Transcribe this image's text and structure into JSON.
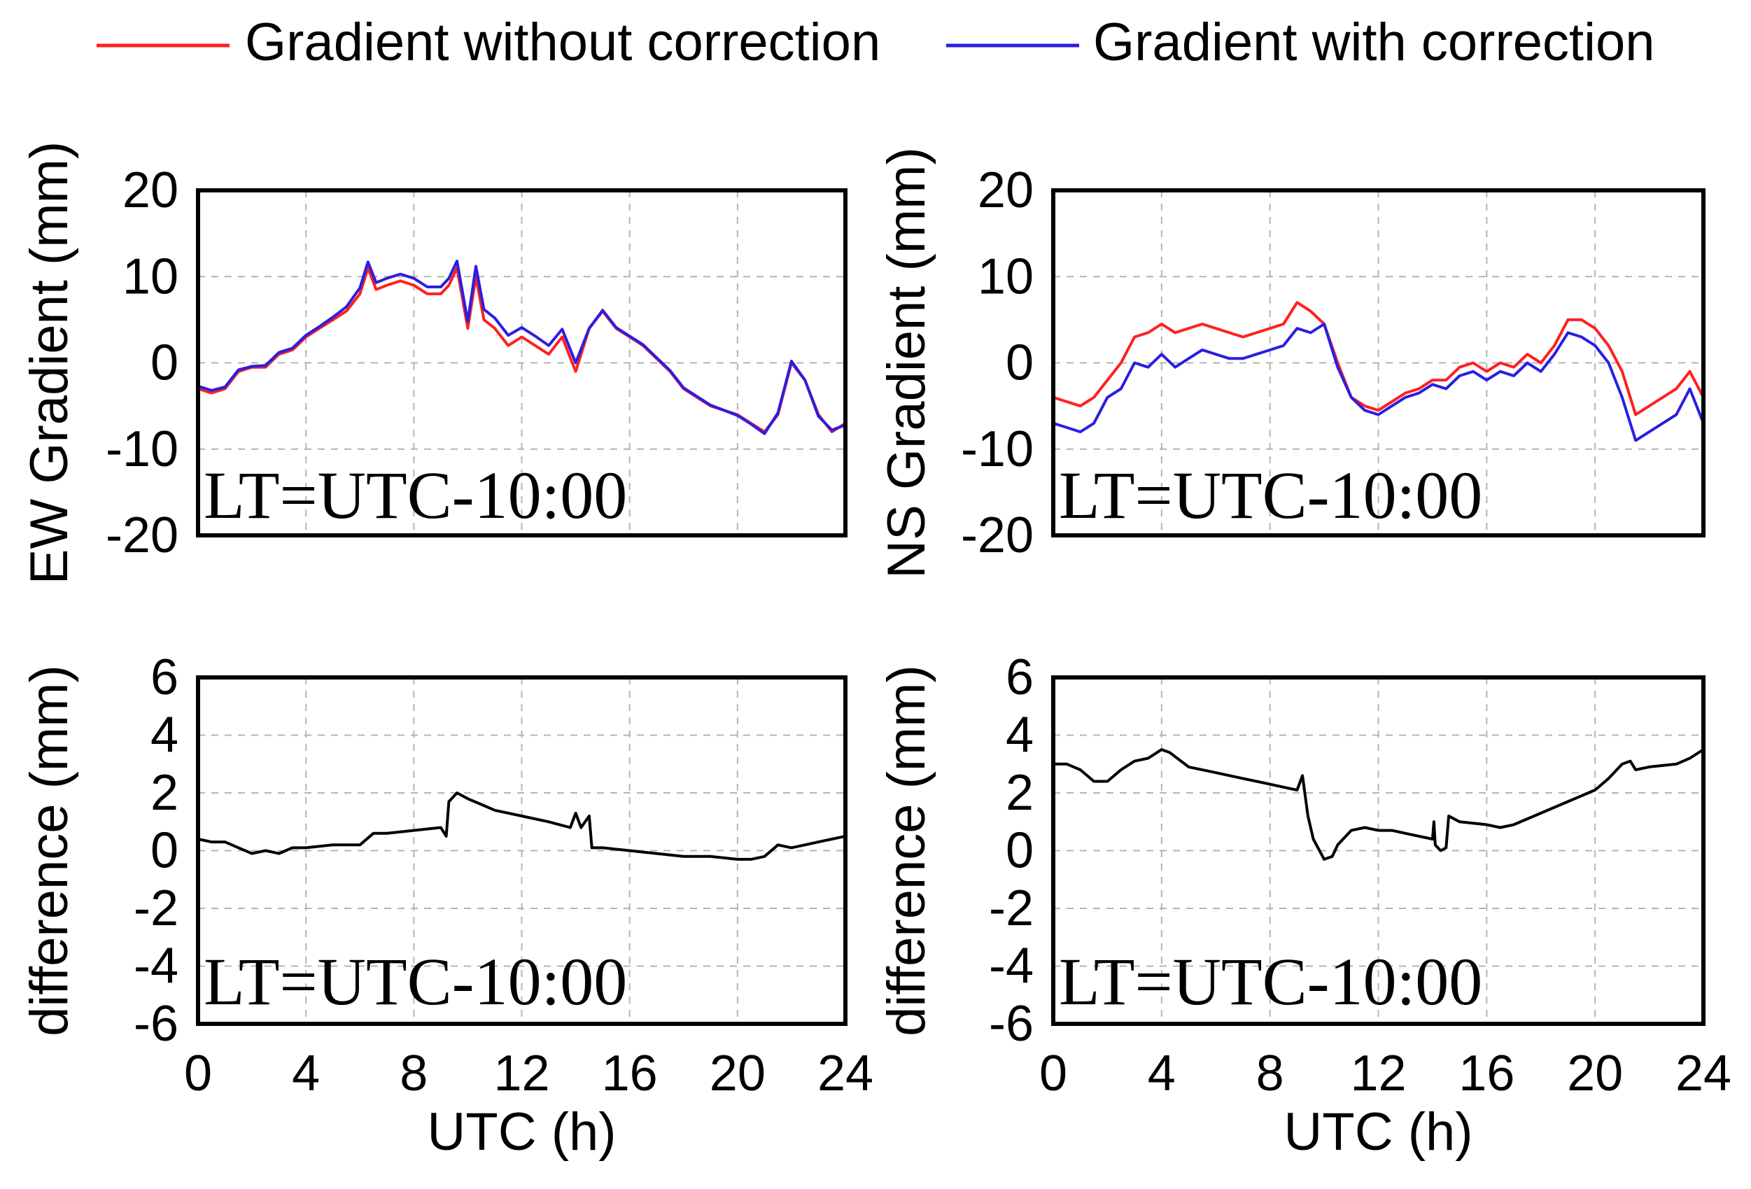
{
  "legend": {
    "items": [
      {
        "label": "Gradient without correction",
        "color": "#ff2020"
      },
      {
        "label": "Gradient with correction",
        "color": "#2b1fe0"
      }
    ]
  },
  "colors": {
    "without": "#ff2020",
    "with": "#2b1fe0",
    "difference": "#000000",
    "grid": "#b4b4b4"
  },
  "chart_data": [
    {
      "type": "line",
      "ylabel": "EW Gradient (mm)",
      "annotation": "LT=UTC-10:00",
      "xlim": [
        0,
        24
      ],
      "ylim": [
        -20,
        20
      ],
      "xticks": [
        0,
        4,
        8,
        12,
        16,
        20,
        24
      ],
      "yticks": [
        20,
        10,
        0,
        -10,
        -20
      ],
      "grid": true,
      "series": [
        {
          "name": "Gradient without correction",
          "color": "#ff2020",
          "x": [
            0,
            0.5,
            1,
            1.5,
            2,
            2.5,
            3,
            3.5,
            4,
            4.5,
            5,
            5.5,
            6,
            6.3,
            6.6,
            7,
            7.5,
            8,
            8.5,
            9,
            9.3,
            9.6,
            10,
            10.3,
            10.6,
            11,
            11.5,
            12,
            12.5,
            13,
            13.5,
            14,
            14.5,
            15,
            15.5,
            16,
            16.5,
            17,
            17.5,
            18,
            18.5,
            19,
            19.5,
            20,
            20.5,
            21,
            21.5,
            22,
            22.5,
            23,
            23.5,
            24
          ],
          "y": [
            -3,
            -3.5,
            -3,
            -1,
            -0.5,
            -0.5,
            1,
            1.5,
            3,
            4,
            5,
            6,
            8,
            11,
            8.5,
            9,
            9.5,
            9,
            8,
            8,
            9,
            11,
            4,
            10,
            5,
            4,
            2,
            3,
            2,
            1,
            3,
            -1,
            4,
            6,
            4,
            3,
            2,
            0.5,
            -1,
            -3,
            -4,
            -5,
            -5.5,
            -6,
            -7,
            -8,
            -6,
            0,
            -2,
            -6,
            -8,
            -7
          ]
        },
        {
          "name": "Gradient with correction",
          "color": "#2b1fe0",
          "x": [
            0,
            0.5,
            1,
            1.5,
            2,
            2.5,
            3,
            3.5,
            4,
            4.5,
            5,
            5.5,
            6,
            6.3,
            6.6,
            7,
            7.5,
            8,
            8.5,
            9,
            9.3,
            9.6,
            10,
            10.3,
            10.6,
            11,
            11.5,
            12,
            12.5,
            13,
            13.5,
            14,
            14.5,
            15,
            15.5,
            16,
            16.5,
            17,
            17.5,
            18,
            18.5,
            19,
            19.5,
            20,
            20.5,
            21,
            21.5,
            22,
            22.5,
            23,
            23.5,
            24
          ],
          "y": [
            -2.7,
            -3.2,
            -2.8,
            -0.8,
            -0.4,
            -0.3,
            1.2,
            1.7,
            3.2,
            4.2,
            5.3,
            6.5,
            8.7,
            11.7,
            9.3,
            9.8,
            10.3,
            9.8,
            8.8,
            8.8,
            9.8,
            11.8,
            4.8,
            11.2,
            6.2,
            5.2,
            3.2,
            4.1,
            3.1,
            2,
            3.9,
            0,
            4,
            6.1,
            4.1,
            3.1,
            2.1,
            0.6,
            -0.9,
            -2.9,
            -3.9,
            -4.9,
            -5.5,
            -6.1,
            -7.1,
            -8.2,
            -5.8,
            0.2,
            -2,
            -6.2,
            -7.8,
            -7.2
          ]
        }
      ]
    },
    {
      "type": "line",
      "ylabel": "NS Gradient (mm)",
      "annotation": "LT=UTC-10:00",
      "xlim": [
        0,
        24
      ],
      "ylim": [
        -20,
        20
      ],
      "xticks": [
        0,
        4,
        8,
        12,
        16,
        20,
        24
      ],
      "yticks": [
        20,
        10,
        0,
        -10,
        -20
      ],
      "grid": true,
      "series": [
        {
          "name": "Gradient without correction",
          "color": "#ff2020",
          "x": [
            0,
            0.5,
            1,
            1.5,
            2,
            2.5,
            3,
            3.5,
            4,
            4.5,
            5,
            5.5,
            6,
            6.5,
            7,
            7.5,
            8,
            8.5,
            9,
            9.5,
            10,
            10.5,
            11,
            11.5,
            12,
            12.5,
            13,
            13.5,
            14,
            14.5,
            15,
            15.5,
            16,
            16.5,
            17,
            17.5,
            18,
            18.5,
            19,
            19.5,
            20,
            20.5,
            21,
            21.5,
            22,
            22.5,
            23,
            23.5,
            24
          ],
          "y": [
            -4,
            -4.5,
            -5,
            -4,
            -2,
            0,
            3,
            3.5,
            4.5,
            3.5,
            4,
            4.5,
            4,
            3.5,
            3,
            3.5,
            4,
            4.5,
            7,
            6,
            4.5,
            0,
            -4,
            -5,
            -5.5,
            -4.5,
            -3.5,
            -3,
            -2,
            -2,
            -0.5,
            0,
            -1,
            0,
            -0.5,
            1,
            0,
            2,
            5,
            5,
            4,
            2,
            -1,
            -6,
            -5,
            -4,
            -3,
            -1,
            -4
          ]
        },
        {
          "name": "Gradient with correction",
          "color": "#2b1fe0",
          "x": [
            0,
            0.5,
            1,
            1.5,
            2,
            2.5,
            3,
            3.5,
            4,
            4.5,
            5,
            5.5,
            6,
            6.5,
            7,
            7.5,
            8,
            8.5,
            9,
            9.5,
            10,
            10.5,
            11,
            11.5,
            12,
            12.5,
            13,
            13.5,
            14,
            14.5,
            15,
            15.5,
            16,
            16.5,
            17,
            17.5,
            18,
            18.5,
            19,
            19.5,
            20,
            20.5,
            21,
            21.5,
            22,
            22.5,
            23,
            23.5,
            24
          ],
          "y": [
            -7,
            -7.5,
            -8,
            -7,
            -4,
            -3,
            0,
            -0.5,
            1,
            -0.5,
            0.5,
            1.5,
            1,
            0.5,
            0.5,
            1,
            1.5,
            2,
            4,
            3.5,
            4.5,
            -0.5,
            -4,
            -5.5,
            -6,
            -5,
            -4,
            -3.5,
            -2.5,
            -3,
            -1.5,
            -1,
            -2,
            -1,
            -1.5,
            0,
            -1,
            1,
            3.5,
            3,
            2,
            0,
            -4,
            -9,
            -8,
            -7,
            -6,
            -3,
            -7
          ]
        }
      ]
    },
    {
      "type": "line",
      "ylabel": "difference (mm)",
      "xlabel": "UTC (h)",
      "annotation": "LT=UTC-10:00",
      "xlim": [
        0,
        24
      ],
      "ylim": [
        -6,
        6
      ],
      "xticks": [
        0,
        4,
        8,
        12,
        16,
        20,
        24
      ],
      "yticks": [
        6,
        4,
        2,
        0,
        -2,
        -4,
        -6
      ],
      "grid": true,
      "series": [
        {
          "name": "difference",
          "color": "#000000",
          "x": [
            0,
            0.5,
            1,
            1.5,
            2,
            2.5,
            3,
            3.5,
            4,
            5,
            6,
            6.5,
            7,
            8,
            9,
            9.2,
            9.3,
            9.4,
            9.6,
            10,
            10.5,
            11,
            12,
            13,
            13.8,
            14,
            14.2,
            14.5,
            14.6,
            15,
            16,
            17,
            18,
            19,
            20,
            20.5,
            21,
            21.5,
            22,
            22.5,
            23,
            23.5,
            24
          ],
          "y": [
            0.4,
            0.3,
            0.3,
            0.1,
            -0.1,
            0,
            -0.1,
            0.1,
            0.1,
            0.2,
            0.2,
            0.6,
            0.6,
            0.7,
            0.8,
            0.5,
            1.7,
            1.8,
            2,
            1.8,
            1.6,
            1.4,
            1.2,
            1.0,
            0.8,
            1.3,
            0.8,
            1.2,
            0.1,
            0.1,
            0,
            -0.1,
            -0.2,
            -0.2,
            -0.3,
            -0.3,
            -0.2,
            0.2,
            0.1,
            0.2,
            0.3,
            0.4,
            0.5
          ]
        }
      ]
    },
    {
      "type": "line",
      "ylabel": "difference (mm)",
      "xlabel": "UTC (h)",
      "annotation": "LT=UTC-10:00",
      "xlim": [
        0,
        24
      ],
      "ylim": [
        -6,
        6
      ],
      "xticks": [
        0,
        4,
        8,
        12,
        16,
        20,
        24
      ],
      "yticks": [
        6,
        4,
        2,
        0,
        -2,
        -4,
        -6
      ],
      "grid": true,
      "series": [
        {
          "name": "difference",
          "color": "#000000",
          "x": [
            0,
            0.5,
            1,
            1.5,
            2,
            2.5,
            3,
            3.5,
            4,
            4.3,
            5,
            6,
            7,
            8,
            8.5,
            9,
            9.2,
            9.4,
            9.6,
            10,
            10.3,
            10.5,
            11,
            11.5,
            12,
            12.5,
            13,
            13.5,
            14,
            14.05,
            14.1,
            14.3,
            14.5,
            14.6,
            15,
            16,
            16.5,
            17,
            17.5,
            18,
            19,
            20,
            20.5,
            21,
            21.3,
            21.5,
            22,
            23,
            23.5,
            24
          ],
          "y": [
            3.0,
            3.0,
            2.8,
            2.4,
            2.4,
            2.8,
            3.1,
            3.2,
            3.5,
            3.4,
            2.9,
            2.7,
            2.5,
            2.3,
            2.2,
            2.1,
            2.6,
            1.2,
            0.4,
            -0.3,
            -0.2,
            0.2,
            0.7,
            0.8,
            0.7,
            0.7,
            0.6,
            0.5,
            0.4,
            1.0,
            0.2,
            0,
            0.1,
            1.2,
            1.0,
            0.9,
            0.8,
            0.9,
            1.1,
            1.3,
            1.7,
            2.1,
            2.5,
            3.0,
            3.1,
            2.8,
            2.9,
            3.0,
            3.2,
            3.5
          ]
        }
      ]
    }
  ]
}
